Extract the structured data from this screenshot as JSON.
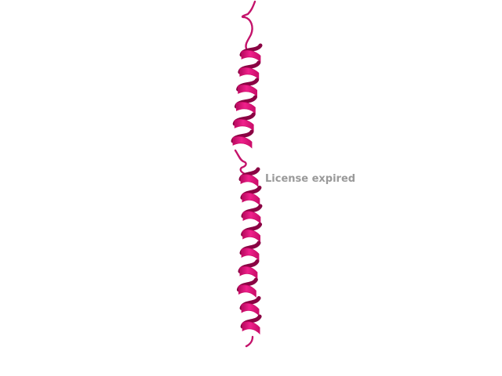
{
  "watermark": {
    "text": "License expired"
  },
  "colors": {
    "background": "#ffffff",
    "ribbon_front": "#ec1a86",
    "ribbon_mid": "#d10c6c",
    "ribbon_back": "#8a0343",
    "coil": "#c4136b",
    "watermark": "#9a9a9a"
  },
  "structure": {
    "icon": "protein-ribbon-alpha-helices",
    "helices": [
      {
        "name": "upper-helix",
        "turns": 6
      },
      {
        "name": "lower-helix",
        "turns": 9
      }
    ]
  }
}
